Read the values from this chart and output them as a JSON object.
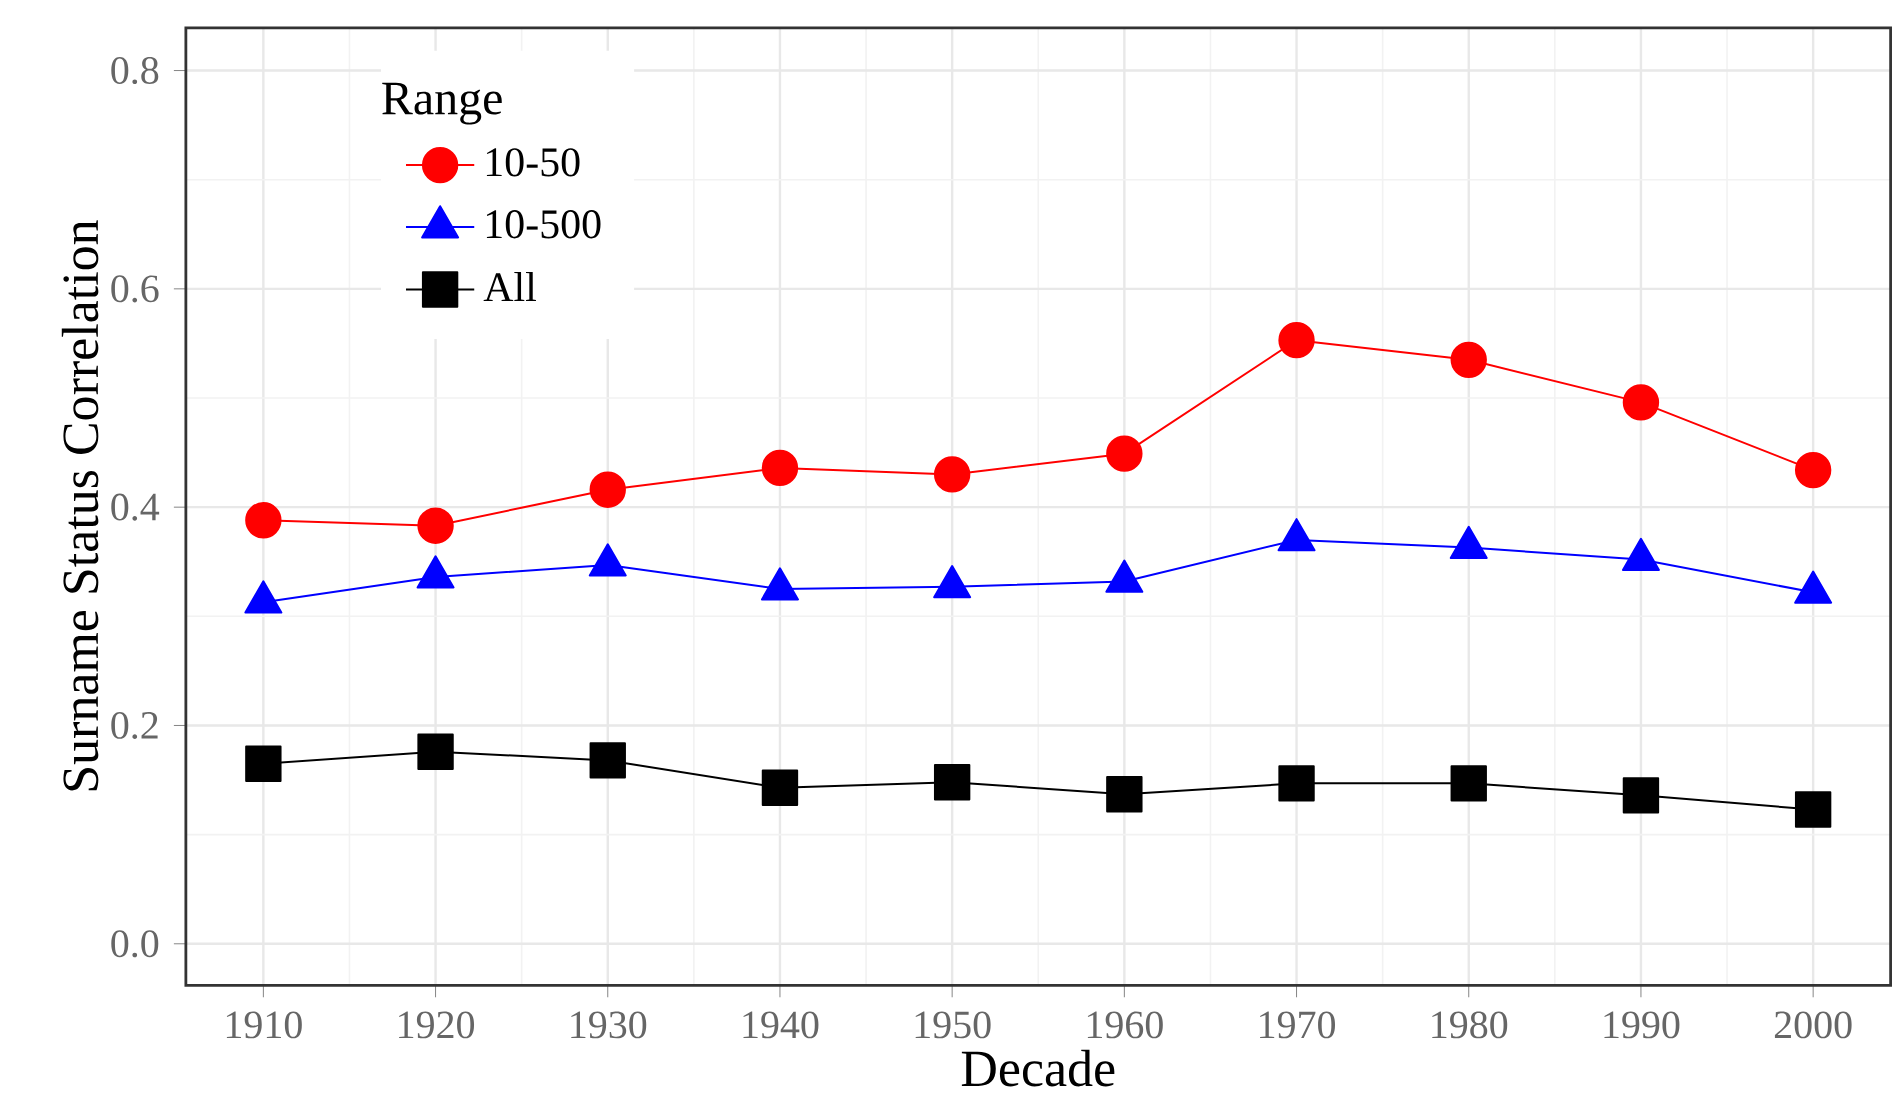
{
  "chart_data": {
    "type": "line",
    "xlabel": "Decade",
    "ylabel": "Surname Status Correlation",
    "legend_title": "Range",
    "x": [
      1910,
      1920,
      1930,
      1940,
      1950,
      1960,
      1970,
      1980,
      1990,
      2000
    ],
    "series": [
      {
        "name": "10-50",
        "color": "#ff0000",
        "marker": "circle",
        "values": [
          0.388,
          0.383,
          0.416,
          0.436,
          0.43,
          0.449,
          0.553,
          0.535,
          0.496,
          0.434
        ]
      },
      {
        "name": "10-500",
        "color": "#0000ff",
        "marker": "triangle",
        "values": [
          0.313,
          0.336,
          0.347,
          0.325,
          0.327,
          0.332,
          0.37,
          0.363,
          0.352,
          0.322
        ]
      },
      {
        "name": "All",
        "color": "#000000",
        "marker": "square",
        "values": [
          0.165,
          0.176,
          0.168,
          0.143,
          0.148,
          0.137,
          0.147,
          0.147,
          0.136,
          0.123
        ]
      }
    ],
    "xlim": [
      1905.5,
      2004.5
    ],
    "ylim": [
      -0.038,
      0.839
    ],
    "xticks": [
      1910,
      1920,
      1930,
      1940,
      1950,
      1960,
      1970,
      1980,
      1990,
      2000
    ],
    "yticks": [
      {
        "value": 0,
        "label": "0.0"
      },
      {
        "value": 0.2,
        "label": "0.2"
      },
      {
        "value": 0.4,
        "label": "0.4"
      },
      {
        "value": 0.6,
        "label": "0.6"
      },
      {
        "value": 0.8,
        "label": "0.8"
      }
    ],
    "grid": true,
    "legend": "top left",
    "line_style": "solid"
  }
}
